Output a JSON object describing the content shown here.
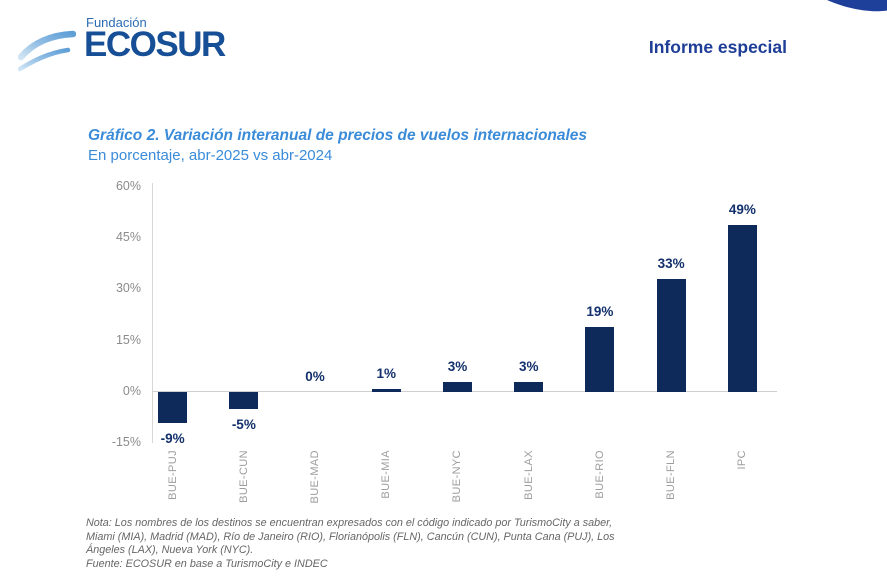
{
  "header": {
    "brand_small": "Fundación",
    "brand": "ECOSUR",
    "report_title": "Informe especial"
  },
  "chart_data": {
    "type": "bar",
    "title": "Gráfico 2. Variación interanual de precios de vuelos internacionales",
    "subtitle": "En porcentaje, abr-2025 vs abr-2024",
    "categories": [
      "BUE-PUJ",
      "BUE-CUN",
      "BUE-MAD",
      "BUE-MIA",
      "BUE-NYC",
      "BUE-LAX",
      "BUE-RIO",
      "BUE-FLN",
      "IPC"
    ],
    "values": [
      -9,
      -5,
      0,
      1,
      3,
      3,
      19,
      33,
      49
    ],
    "labels": [
      "-9%",
      "-5%",
      "0%",
      "1%",
      "3%",
      "3%",
      "19%",
      "33%",
      "49%"
    ],
    "ylim": [
      -15,
      60
    ],
    "yticks": [
      60,
      45,
      30,
      15,
      0,
      -15
    ],
    "ytick_labels": [
      "60%",
      "45%",
      "30%",
      "15%",
      "0%",
      "-15%"
    ],
    "xlabel": "",
    "ylabel": "",
    "grid": false,
    "legend": false,
    "bar_color": "#0e2a5a",
    "label_color": "#12306b"
  },
  "notes": {
    "nota_lines": [
      "Nota: Los nombres de los destinos se encuentran expresados con el código indicado por TurismoCity a saber,",
      "Miami (MIA), Madrid (MAD), Río de Janeiro (RIO), Florianópolis (FLN), Cancún (CUN), Punta Cana (PUJ), Los",
      "Ángeles (LAX), Nueva York (NYC)."
    ],
    "fuente": "Fuente: ECOSUR en base a TurismoCity e INDEC"
  },
  "colors": {
    "accent_blue": "#3a8bd8",
    "navy": "#0e2a5a",
    "header_blue": "#1e3d96",
    "logo_blue": "#174f96",
    "axis_gray": "#8b8b8b"
  }
}
